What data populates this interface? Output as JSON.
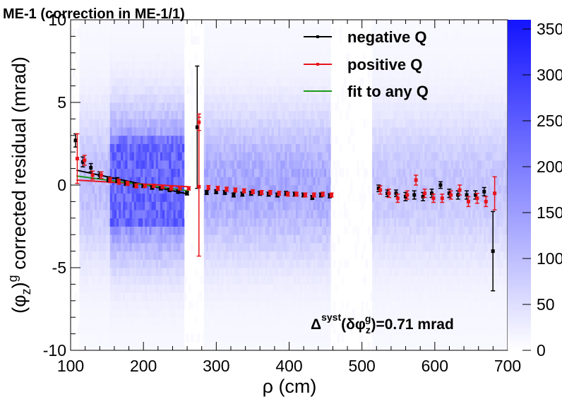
{
  "chart_data": {
    "type": "scatter",
    "title": "ME-1 (correction in ME-1/1)",
    "xlabel": "ρ (cm)",
    "ylabel": "(φz)g corrected residual (mrad)",
    "ylabel_parts": {
      "open": "(φ",
      "sub": "z",
      "close": ")",
      "sup": "g",
      "rest": " corrected residual (mrad)"
    },
    "xlim": [
      100,
      700
    ],
    "ylim": [
      -10,
      10
    ],
    "x_ticks": [
      "100",
      "200",
      "300",
      "400",
      "500",
      "600",
      "700"
    ],
    "y_ticks": [
      "-10",
      "-5",
      "0",
      "5",
      "10"
    ],
    "z_ticks": [
      "0",
      "50",
      "100",
      "150",
      "200",
      "250",
      "300",
      "350"
    ],
    "zlim": [
      0,
      360
    ],
    "grid": false,
    "legend_position": "top-right",
    "legend": [
      {
        "label": "negative Q",
        "color": "#000000"
      },
      {
        "label": "positive Q",
        "color": "#e8141a"
      },
      {
        "label": "fit to any Q",
        "color": "#1a9a1a"
      }
    ],
    "annotation": {
      "text": "Δsyst(δφzg)=0.71 mrad",
      "parts": {
        "delta": "Δ",
        "syst": "syst",
        "open": "(δφ",
        "sub": "z",
        "sup": "g",
        "close": ")=0.71 mrad"
      }
    },
    "heatmap": {
      "colormap_low": "#ffffff",
      "colormap_high": "#1414ff",
      "x_bands": [
        [
          112,
          255
        ],
        [
          282,
          455
        ],
        [
          512,
          700
        ]
      ],
      "core_x": [
        152,
        255
      ],
      "core_y": [
        -3,
        3
      ]
    },
    "series": [
      {
        "name": "negative Q",
        "color": "#000000",
        "points": [
          [
            108,
            2.7,
            0.4
          ],
          [
            118,
            1.4,
            0.3
          ],
          [
            129,
            1.05,
            0.25
          ],
          [
            141,
            0.6,
            0.2
          ],
          [
            153,
            0.35,
            0.15
          ],
          [
            165,
            0.3,
            0.15
          ],
          [
            177,
            0.1,
            0.12
          ],
          [
            189,
            0.0,
            0.12
          ],
          [
            201,
            -0.05,
            0.1
          ],
          [
            213,
            -0.15,
            0.1
          ],
          [
            225,
            -0.2,
            0.1
          ],
          [
            237,
            -0.3,
            0.1
          ],
          [
            249,
            -0.4,
            0.1
          ],
          [
            261,
            -0.5,
            0.1
          ],
          [
            275,
            3.5,
            3.7
          ],
          [
            288,
            -0.45,
            0.12
          ],
          [
            301,
            -0.4,
            0.12
          ],
          [
            313,
            -0.45,
            0.12
          ],
          [
            325,
            -0.6,
            0.12
          ],
          [
            337,
            -0.55,
            0.12
          ],
          [
            349,
            -0.5,
            0.12
          ],
          [
            361,
            -0.5,
            0.12
          ],
          [
            373,
            -0.55,
            0.12
          ],
          [
            385,
            -0.6,
            0.12
          ],
          [
            397,
            -0.5,
            0.12
          ],
          [
            409,
            -0.55,
            0.12
          ],
          [
            421,
            -0.6,
            0.12
          ],
          [
            433,
            -0.75,
            0.12
          ],
          [
            445,
            -0.6,
            0.12
          ],
          [
            457,
            -0.65,
            0.12
          ],
          [
            524,
            -0.2,
            0.2
          ],
          [
            536,
            -0.5,
            0.2
          ],
          [
            548,
            -0.5,
            0.2
          ],
          [
            561,
            -0.7,
            0.25
          ],
          [
            573,
            -0.6,
            0.25
          ],
          [
            585,
            -0.7,
            0.25
          ],
          [
            597,
            -0.5,
            0.25
          ],
          [
            609,
            0.0,
            0.2
          ],
          [
            621,
            -0.5,
            0.25
          ],
          [
            633,
            -0.6,
            0.25
          ],
          [
            645,
            -0.6,
            0.25
          ],
          [
            657,
            -0.6,
            0.25
          ],
          [
            669,
            -0.4,
            0.25
          ],
          [
            681,
            -4.0,
            2.4
          ]
        ]
      },
      {
        "name": "positive Q",
        "color": "#e8141a",
        "points": [
          [
            108,
            1.6,
            1.5
          ],
          [
            118,
            1.5,
            0.3
          ],
          [
            129,
            0.6,
            0.25
          ],
          [
            141,
            0.6,
            0.2
          ],
          [
            153,
            0.3,
            0.15
          ],
          [
            165,
            0.2,
            0.15
          ],
          [
            177,
            0.1,
            0.12
          ],
          [
            189,
            -0.05,
            0.12
          ],
          [
            201,
            -0.05,
            0.1
          ],
          [
            213,
            -0.05,
            0.1
          ],
          [
            225,
            -0.1,
            0.1
          ],
          [
            237,
            -0.2,
            0.1
          ],
          [
            249,
            -0.2,
            0.1
          ],
          [
            261,
            -0.2,
            0.1
          ],
          [
            275,
            3.8,
            0.5
          ],
          [
            275,
            -0.1,
            4.2
          ],
          [
            288,
            -0.15,
            0.12
          ],
          [
            301,
            -0.2,
            0.12
          ],
          [
            313,
            -0.25,
            0.12
          ],
          [
            325,
            -0.3,
            0.12
          ],
          [
            337,
            -0.35,
            0.12
          ],
          [
            349,
            -0.4,
            0.12
          ],
          [
            361,
            -0.45,
            0.12
          ],
          [
            373,
            -0.45,
            0.12
          ],
          [
            385,
            -0.5,
            0.12
          ],
          [
            397,
            -0.55,
            0.12
          ],
          [
            409,
            -0.55,
            0.12
          ],
          [
            421,
            -0.6,
            0.12
          ],
          [
            433,
            -0.6,
            0.12
          ],
          [
            445,
            -0.55,
            0.12
          ],
          [
            457,
            -0.6,
            0.12
          ],
          [
            524,
            -0.3,
            0.25
          ],
          [
            536,
            -0.5,
            0.25
          ],
          [
            548,
            -0.8,
            0.25
          ],
          [
            561,
            -0.6,
            0.25
          ],
          [
            573,
            0.3,
            0.3
          ],
          [
            585,
            -0.5,
            0.25
          ],
          [
            597,
            -0.8,
            0.25
          ],
          [
            609,
            -0.8,
            0.25
          ],
          [
            621,
            -0.6,
            0.25
          ],
          [
            633,
            -0.3,
            0.3
          ],
          [
            645,
            -1.0,
            0.3
          ],
          [
            657,
            -0.8,
            0.3
          ],
          [
            669,
            -1.0,
            0.3
          ],
          [
            681,
            -0.5,
            1.0
          ]
        ]
      }
    ],
    "fits": [
      {
        "name": "negative Q",
        "color": "#000000",
        "x": [
          108,
          262
        ],
        "y": [
          0.9,
          -0.55
        ]
      },
      {
        "name": "positive Q",
        "color": "#e8141a",
        "x": [
          108,
          262
        ],
        "y": [
          0.3,
          -0.1
        ]
      },
      {
        "name": "fit to any Q",
        "color": "#1a9a1a",
        "x": [
          108,
          262
        ],
        "y": [
          0.55,
          -0.35
        ]
      }
    ]
  }
}
